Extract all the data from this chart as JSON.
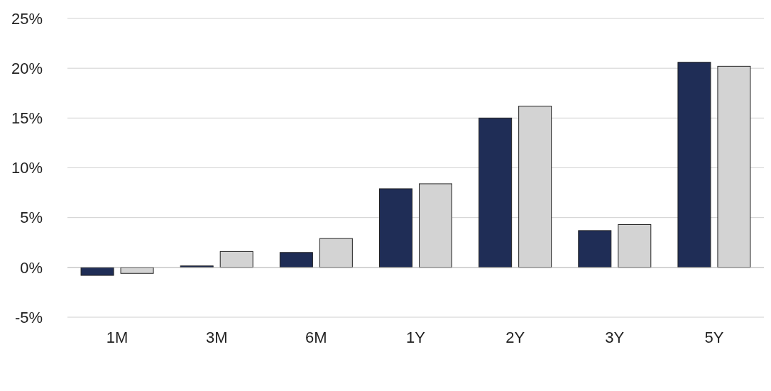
{
  "chart_data": {
    "type": "bar",
    "categories": [
      "1M",
      "3M",
      "6M",
      "1Y",
      "2Y",
      "3Y",
      "5Y"
    ],
    "series": [
      {
        "color": "#1f2d56",
        "values": [
          -0.8,
          0.15,
          1.5,
          7.9,
          15.0,
          3.7,
          20.6
        ]
      },
      {
        "color": "#d3d3d3",
        "values": [
          -0.6,
          1.6,
          2.9,
          8.4,
          16.2,
          4.3,
          20.2
        ]
      }
    ],
    "ylim": [
      -5,
      25
    ],
    "yticks": [
      {
        "value": -5,
        "label": "-5%"
      },
      {
        "value": 0,
        "label": "0%"
      },
      {
        "value": 5,
        "label": "5%"
      },
      {
        "value": 10,
        "label": "10%"
      },
      {
        "value": 15,
        "label": "15%"
      },
      {
        "value": 20,
        "label": "20%"
      },
      {
        "value": 25,
        "label": "25%"
      }
    ],
    "grid": "y"
  }
}
